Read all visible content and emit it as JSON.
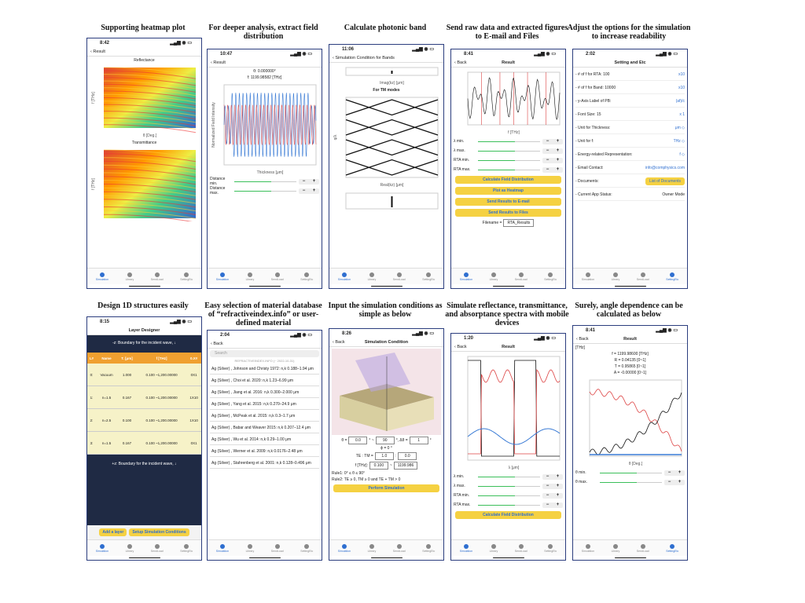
{
  "tabs": [
    "Simulation",
    "Library",
    "SendLoad",
    "SettingEtc"
  ],
  "panels": [
    {
      "caption": "Supporting heatmap plot",
      "time": "8:42",
      "back": "Result",
      "body": [
        {
          "kind": "label",
          "text": "Reflectance"
        },
        {
          "kind": "plot",
          "style": "heatmap",
          "ylabel": "f [THz]",
          "xlabel": "θ [Deg.]"
        },
        {
          "kind": "label",
          "text": "Transmittance"
        },
        {
          "kind": "plot",
          "style": "heatmap",
          "ylabel": "f [THz]"
        }
      ]
    },
    {
      "caption": "For deeper analysis, extract field distribution",
      "time": "10:47",
      "back": "Result",
      "body": [
        {
          "kind": "label",
          "text": "θ:  0.000000°"
        },
        {
          "kind": "label",
          "text": "f:  1199.98582 [THz]"
        },
        {
          "kind": "plot",
          "style": "wave",
          "ylabel": "Normalized Field Intensity",
          "xlabel": "Thickness [μm]"
        },
        {
          "kind": "slider",
          "text": "Distance min."
        },
        {
          "kind": "slider",
          "text": "Distance max."
        }
      ]
    },
    {
      "caption": "Calculate photonic band",
      "time": "11:06",
      "back": "Simulation Condition for Bands",
      "body": [
        {
          "kind": "plot",
          "style": "stub",
          "xlabel": "Imag(kz) [μm]"
        },
        {
          "kind": "label",
          "text": "For TM modes",
          "bold": true
        },
        {
          "kind": "plot",
          "style": "band",
          "ylabel": "q/λ",
          "xlabel": "Real(kz) [μm]"
        },
        {
          "kind": "plot",
          "style": "stub"
        }
      ]
    },
    {
      "caption": "Send raw data and extracted figures to E-mail and Files",
      "time": "8:41",
      "back": "Back",
      "title": "Result",
      "body": [
        {
          "kind": "plot",
          "style": "spectrum",
          "xlabel": "f [THz]"
        },
        {
          "kind": "slider",
          "text": "λ min."
        },
        {
          "kind": "slider",
          "text": "λ max."
        },
        {
          "kind": "slider",
          "text": "RTA min."
        },
        {
          "kind": "slider",
          "text": "RTA max."
        },
        {
          "kind": "button",
          "text": "Calculate Field Distribution"
        },
        {
          "kind": "button",
          "text": "Plot as Heatmap"
        },
        {
          "kind": "button",
          "text": "Send Results to E-mail"
        },
        {
          "kind": "button",
          "text": "Send Results to Files"
        },
        {
          "kind": "fields",
          "cells": [
            {
              "text": "Filename ="
            },
            {
              "text": "RTA_Results",
              "box": true
            }
          ]
        }
      ]
    },
    {
      "caption": "Adjust the options for the simulation to increase readability",
      "time": "2:02",
      "title": "Setting and Etc",
      "body": [
        {
          "kind": "kv",
          "left": "- # of f for RTA:  100",
          "right": "x10"
        },
        {
          "kind": "kv",
          "left": "- # of f for Band:  10000",
          "right": "x10"
        },
        {
          "kind": "kv",
          "left": "- y-Axis Label of PB:",
          "right": "(af)/c"
        },
        {
          "kind": "kv",
          "left": "- Font Size: 15",
          "right": "x 1"
        },
        {
          "kind": "kv",
          "left": "- Unit for Thickness:",
          "right": "μm ◇"
        },
        {
          "kind": "kv",
          "left": "- Unit for f:",
          "right": "THz ◇"
        },
        {
          "kind": "kv",
          "left": "- Energy-related Representation:",
          "right": "f ◇"
        },
        {
          "kind": "kv",
          "left": "- Email Contact:",
          "right": "info@comphysics.com"
        },
        {
          "kind": "kv",
          "left": "- Documents:",
          "right": "List of Documents",
          "button": true
        },
        {
          "kind": "kv",
          "left": "- Current App Status:",
          "right": "Owner Mode",
          "plain": true
        }
      ]
    },
    {
      "caption": "Design 1D structures easily",
      "time": "8:15",
      "title": "Layer Designer",
      "dark": true,
      "body": [
        {
          "kind": "bar",
          "text": "-z: Boundary for the incident wave, ↓"
        },
        {
          "kind": "table",
          "header": [
            "L#",
            "Name",
            "T. [μm]",
            "f [THz]",
            "0.X#"
          ],
          "rows": [
            [
              "0:",
              "Vacuum",
              "1.000",
              "0.100 ~1,200.00000",
              "0X1"
            ],
            [
              "1:",
              "n=1.5",
              "0.167",
              "0.100 ~1,200.00000",
              "1X10"
            ],
            [
              "2:",
              "n=2.5",
              "0.100",
              "0.100 ~1,200.00000",
              "1X10"
            ],
            [
              "3:",
              "n=1.5",
              "0.167",
              "0.100 ~1,200.00000",
              "0X1"
            ]
          ]
        },
        {
          "kind": "bar",
          "text": "+z: Boundary for the incident wave, ↓"
        },
        {
          "kind": "buttons",
          "items": [
            "Add a layer",
            "Setup Simulation Conditions"
          ]
        }
      ]
    },
    {
      "caption": "Easy selection of material database of “refractiveindex.info” or user-defined material",
      "time": "2:04",
      "back": "Back",
      "body": [
        {
          "kind": "search",
          "text": "Search"
        },
        {
          "kind": "label",
          "text": "REFRACTIVEINDEX.INFO (~ 2022-10-31)",
          "small": true
        },
        {
          "kind": "list",
          "items": [
            "Ag (Silver) , Johnson and Christy 1972: n,k 0.188–1.94 μm",
            "Ag (Silver) , Choi et al. 2020: n,k 1.23–6.99 μm",
            "Ag (Silver) , Jiang et al. 2016: n,k 0.300–2.000 μm",
            "Ag (Silver) , Yang et al. 2015: n,k 0.270–24.9 μm",
            "Ag (Silver) , McPeak et al. 2015: n,k 0.3–1.7 μm",
            "Ag (Silver) , Babar and Weaver 2015: n,k 0.207–12.4 μm",
            "Ag (Silver) , Wu et al. 2014: n,k 0.29–1.00 μm",
            "Ag (Silver) , Werner et al. 2009: n,k 0.0176–2.48 μm",
            "Ag (Silver) , Stahrenberg et al. 2001: n,k 0.128–0.496 μm"
          ]
        }
      ]
    },
    {
      "caption": "Input the simulation conditions as simple as below",
      "time": "8:26",
      "back": "Back",
      "title": "Simulation Condition",
      "body": [
        {
          "kind": "plot",
          "style": "block"
        },
        {
          "kind": "fields",
          "cells": [
            {
              "text": "θ ="
            },
            {
              "text": "0.0",
              "box": true
            },
            {
              "text": "° ~"
            },
            {
              "text": "90",
              "box": true
            },
            {
              "text": "°, Δθ ="
            },
            {
              "text": "1",
              "box": true
            },
            {
              "text": "°"
            }
          ]
        },
        {
          "kind": "label",
          "text": "ϕ = 0 °"
        },
        {
          "kind": "fields",
          "cells": [
            {
              "text": "TE : TM ="
            },
            {
              "text": "1.0",
              "box": true
            },
            {
              "text": ":"
            },
            {
              "text": "0.0",
              "box": true
            }
          ]
        },
        {
          "kind": "fields",
          "cells": [
            {
              "text": "f [THz]:"
            },
            {
              "text": "0.100",
              "box": true
            },
            {
              "text": "~"
            },
            {
              "text": "1199.986",
              "box": true
            }
          ]
        },
        {
          "kind": "label",
          "text": "Rule1: 0° ≤ θ ≤ 90°",
          "left": true
        },
        {
          "kind": "label",
          "text": "Rule2: TE ≥ 0, TM ≥ 0 and TE + TM > 0",
          "left": true
        },
        {
          "kind": "button",
          "text": "Perform Simulation"
        }
      ]
    },
    {
      "caption": "Simulate reflectance, transmittance, and absorptance spectra with mobile devices",
      "time": "1:20",
      "back": "Back",
      "title": "Result",
      "body": [
        {
          "kind": "plot",
          "style": "rta",
          "xlabel": "λ [μm]"
        },
        {
          "kind": "slider",
          "text": "λ min."
        },
        {
          "kind": "slider",
          "text": "λ max."
        },
        {
          "kind": "slider",
          "text": "RTA min."
        },
        {
          "kind": "slider",
          "text": "RTA max."
        },
        {
          "kind": "button",
          "text": "Calculate Field Distribution"
        }
      ]
    },
    {
      "caption": "Surely, angle dependence can be calculated as below",
      "time": "8:41",
      "back": "Back",
      "title": "Result",
      "body": [
        {
          "kind": "label",
          "text": "[THz]",
          "left": true
        },
        {
          "kind": "label",
          "text": "f = 1199.98600 [THz]"
        },
        {
          "kind": "label",
          "text": "R = 0.04135 [0~1]"
        },
        {
          "kind": "label",
          "text": "T = 0.95865 [0~1]"
        },
        {
          "kind": "label",
          "text": "A = -0.00000 [0~1]"
        },
        {
          "kind": "plot",
          "style": "angle",
          "xlabel": "θ [Deg.]"
        },
        {
          "kind": "slider",
          "text": "θ min."
        },
        {
          "kind": "slider",
          "text": "θ max."
        }
      ]
    }
  ]
}
